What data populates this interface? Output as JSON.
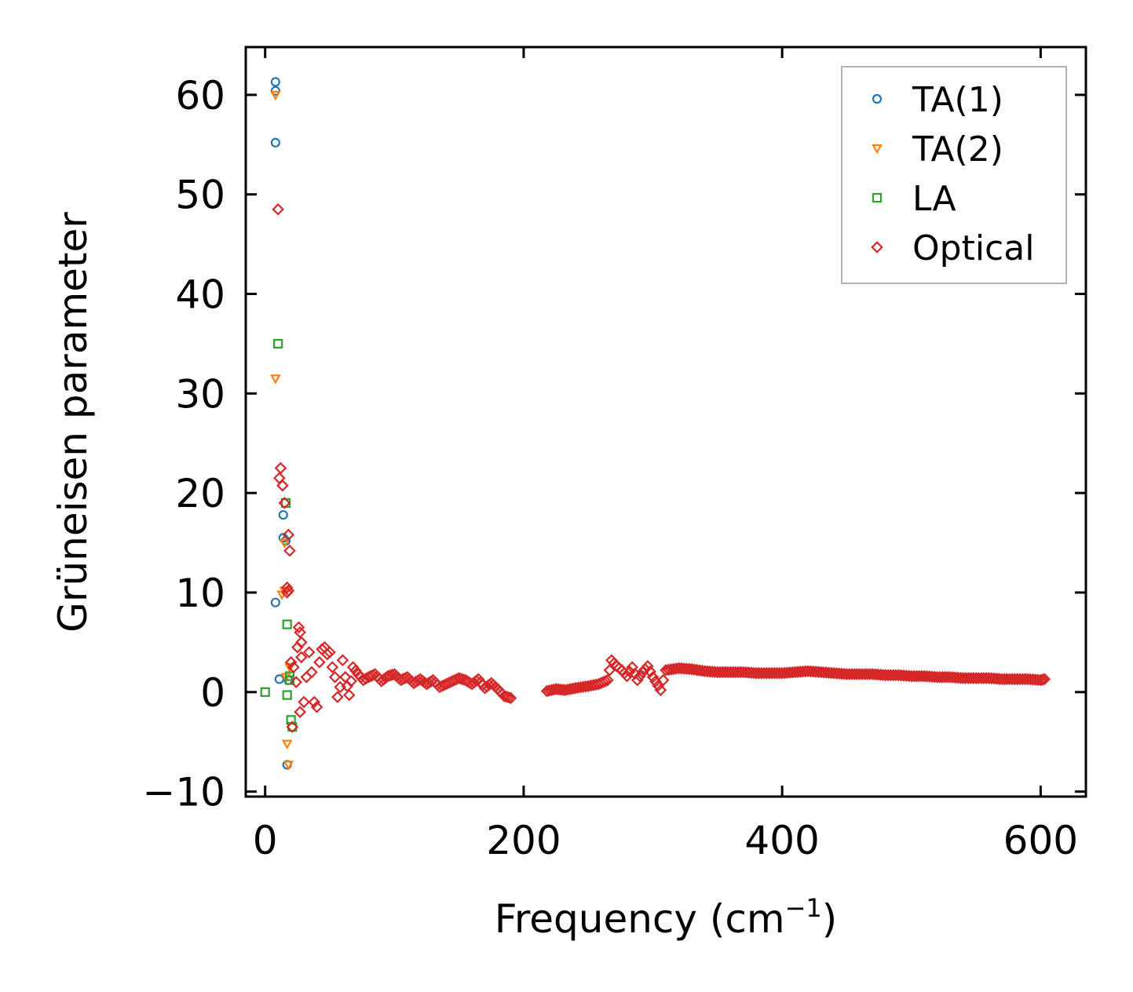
{
  "chart_data": {
    "type": "scatter",
    "title": "",
    "xlabel": "Frequency (cm",
    "xlabel_sup": "−1",
    "xlabel_end": ")",
    "ylabel": "Grüneisen parameter",
    "xlim": [
      -15,
      635
    ],
    "ylim": [
      -10.5,
      64.8
    ],
    "xticks": [
      0,
      200,
      400,
      600
    ],
    "yticks": [
      -10,
      0,
      10,
      20,
      30,
      40,
      50,
      60
    ],
    "ytick_labels": [
      "−10",
      "0",
      "10",
      "20",
      "30",
      "40",
      "50",
      "60"
    ],
    "grid": false,
    "legend_position": "top-right",
    "series": [
      {
        "name": "TA(1)",
        "marker": "circle",
        "color": "#1f77b4",
        "points": [
          [
            8,
            61.3
          ],
          [
            8,
            60.4
          ],
          [
            8,
            55.2
          ],
          [
            8,
            9
          ],
          [
            11,
            1.3
          ],
          [
            14,
            17.8
          ],
          [
            14,
            15.5
          ],
          [
            16,
            15.2
          ],
          [
            17,
            -7.3
          ],
          [
            18,
            1.2
          ]
        ]
      },
      {
        "name": "TA(2)",
        "marker": "triangle-down",
        "color": "#ff7f0e",
        "points": [
          [
            8,
            60
          ],
          [
            8,
            31.5
          ],
          [
            13,
            9.8
          ],
          [
            15,
            10.2
          ],
          [
            15,
            15
          ],
          [
            17,
            -5.2
          ],
          [
            18,
            -7.3
          ],
          [
            16,
            1.5
          ],
          [
            19,
            2.5
          ]
        ]
      },
      {
        "name": "LA",
        "marker": "square",
        "color": "#2ca02c",
        "points": [
          [
            0,
            0
          ],
          [
            10,
            35
          ],
          [
            17,
            6.8
          ],
          [
            16,
            19
          ],
          [
            17,
            -0.3
          ],
          [
            19,
            1.6
          ],
          [
            20,
            -2.8
          ],
          [
            21,
            -3.5
          ],
          [
            19,
            1.2
          ]
        ]
      },
      {
        "name": "Optical",
        "marker": "diamond",
        "color": "#d62728",
        "points": [
          [
            10,
            48.5
          ],
          [
            12,
            22.5
          ],
          [
            11,
            21.5
          ],
          [
            15,
            19
          ],
          [
            18,
            15.8
          ],
          [
            19,
            14.2
          ],
          [
            17,
            10.5
          ],
          [
            18,
            10.2
          ],
          [
            17,
            10
          ],
          [
            20,
            3
          ],
          [
            22,
            2.5
          ],
          [
            21,
            -3.5
          ],
          [
            24,
            1
          ],
          [
            26,
            6.5
          ],
          [
            27,
            6
          ],
          [
            28,
            5
          ],
          [
            25,
            4.5
          ],
          [
            28,
            3.5
          ],
          [
            27,
            -2
          ],
          [
            30,
            -1
          ],
          [
            34,
            4
          ],
          [
            36,
            2
          ],
          [
            38,
            -1
          ],
          [
            40,
            -1.5
          ],
          [
            42,
            3
          ],
          [
            44,
            4.3
          ],
          [
            46,
            4.5
          ],
          [
            48,
            3.8
          ],
          [
            50,
            4
          ],
          [
            52,
            2.5
          ],
          [
            54,
            1.5
          ],
          [
            56,
            -0.5
          ],
          [
            58,
            0.5
          ],
          [
            60,
            3.2
          ],
          [
            62,
            1.5
          ],
          [
            65,
            -0.3
          ],
          [
            68,
            2.5
          ],
          [
            72,
            1.8
          ],
          [
            76,
            1.2
          ],
          [
            80,
            1.5
          ],
          [
            85,
            1.8
          ],
          [
            90,
            1.1
          ],
          [
            95,
            1.6
          ],
          [
            100,
            1.8
          ],
          [
            105,
            1.2
          ],
          [
            110,
            1.5
          ],
          [
            115,
            0.9
          ],
          [
            120,
            1.3
          ],
          [
            125,
            0.8
          ],
          [
            130,
            1.2
          ],
          [
            135,
            0.5
          ],
          [
            150,
            1.4
          ],
          [
            155,
            1.2
          ],
          [
            160,
            0.8
          ],
          [
            165,
            1.3
          ],
          [
            170,
            0.4
          ],
          [
            175,
            0.9
          ],
          [
            180,
            0.3
          ],
          [
            185,
            -0.4
          ],
          [
            190,
            -0.6
          ],
          [
            218,
            0.1
          ],
          [
            225,
            0.3
          ],
          [
            232,
            0.2
          ],
          [
            240,
            0.4
          ],
          [
            250,
            0.6
          ],
          [
            258,
            0.8
          ],
          [
            265,
            1.2
          ],
          [
            268,
            3.2
          ],
          [
            272,
            2.6
          ],
          [
            276,
            2.2
          ],
          [
            280,
            1.6
          ],
          [
            284,
            2.5
          ],
          [
            288,
            1.2
          ],
          [
            292,
            2
          ],
          [
            296,
            2.6
          ],
          [
            300,
            1.5
          ],
          [
            306,
            0.2
          ],
          [
            310,
            2.2
          ],
          [
            320,
            2.4
          ],
          [
            330,
            2.3
          ],
          [
            340,
            2.1
          ],
          [
            350,
            2
          ],
          [
            360,
            2
          ],
          [
            370,
            2
          ],
          [
            380,
            1.9
          ],
          [
            390,
            1.9
          ],
          [
            400,
            1.9
          ],
          [
            410,
            2
          ],
          [
            420,
            2.1
          ],
          [
            430,
            2
          ],
          [
            440,
            1.9
          ],
          [
            450,
            1.8
          ],
          [
            460,
            1.8
          ],
          [
            470,
            1.8
          ],
          [
            480,
            1.7
          ],
          [
            490,
            1.7
          ],
          [
            500,
            1.6
          ],
          [
            510,
            1.6
          ],
          [
            520,
            1.5
          ],
          [
            530,
            1.5
          ],
          [
            540,
            1.4
          ],
          [
            550,
            1.4
          ],
          [
            560,
            1.4
          ],
          [
            570,
            1.3
          ],
          [
            580,
            1.3
          ],
          [
            590,
            1.3
          ],
          [
            600,
            1.2
          ],
          [
            603,
            1.3
          ]
        ]
      }
    ]
  }
}
